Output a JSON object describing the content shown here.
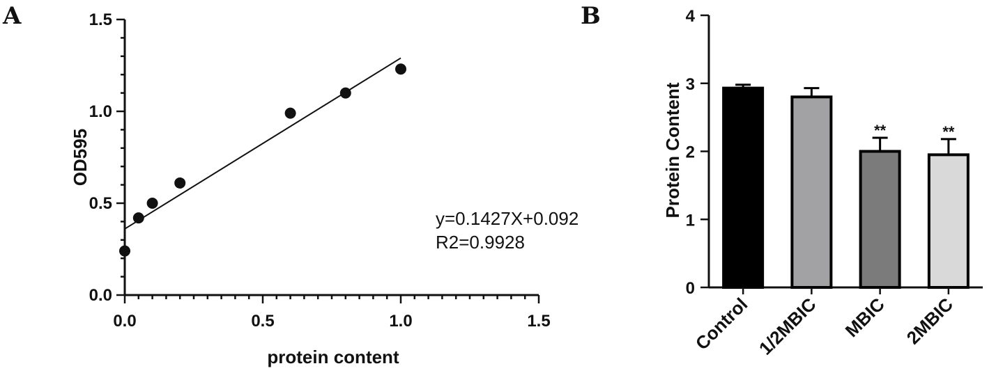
{
  "chart_data": [
    {
      "panel": "A",
      "type": "scatter",
      "xlabel": "protein content",
      "ylabel": "OD595",
      "xlim": [
        0,
        1.5
      ],
      "ylim": [
        0,
        1.5
      ],
      "xticks": [
        "0.0",
        "0.5",
        "1.0",
        "1.5"
      ],
      "yticks": [
        "0.0",
        "0.5",
        "1.0",
        "1.5"
      ],
      "x": [
        0,
        0.05,
        0.1,
        0.2,
        0.6,
        0.8,
        1.0
      ],
      "y": [
        0.24,
        0.42,
        0.5,
        0.61,
        0.99,
        1.1,
        1.23
      ],
      "fit_line": {
        "x": [
          0,
          1.0
        ],
        "y": [
          0.36,
          1.29
        ]
      },
      "equation": "y=0.1427X+0.092",
      "r2": "R2=0.9928",
      "grid": false
    },
    {
      "panel": "B",
      "type": "bar",
      "ylabel": "Protein Content",
      "ylim": [
        0,
        4
      ],
      "yticks": [
        "0",
        "1",
        "2",
        "3",
        "4"
      ],
      "categories": [
        "Control",
        "1/2MBIC",
        "MBIC",
        "2MBIC"
      ],
      "values": [
        2.93,
        2.8,
        2.0,
        1.95
      ],
      "errors": [
        0.05,
        0.13,
        0.2,
        0.23
      ],
      "significance": [
        "",
        "",
        "**",
        "**"
      ],
      "colors": [
        "#000000",
        "#a2a2a5",
        "#7b7b7b",
        "#d9d9d9"
      ],
      "grid": false
    }
  ]
}
